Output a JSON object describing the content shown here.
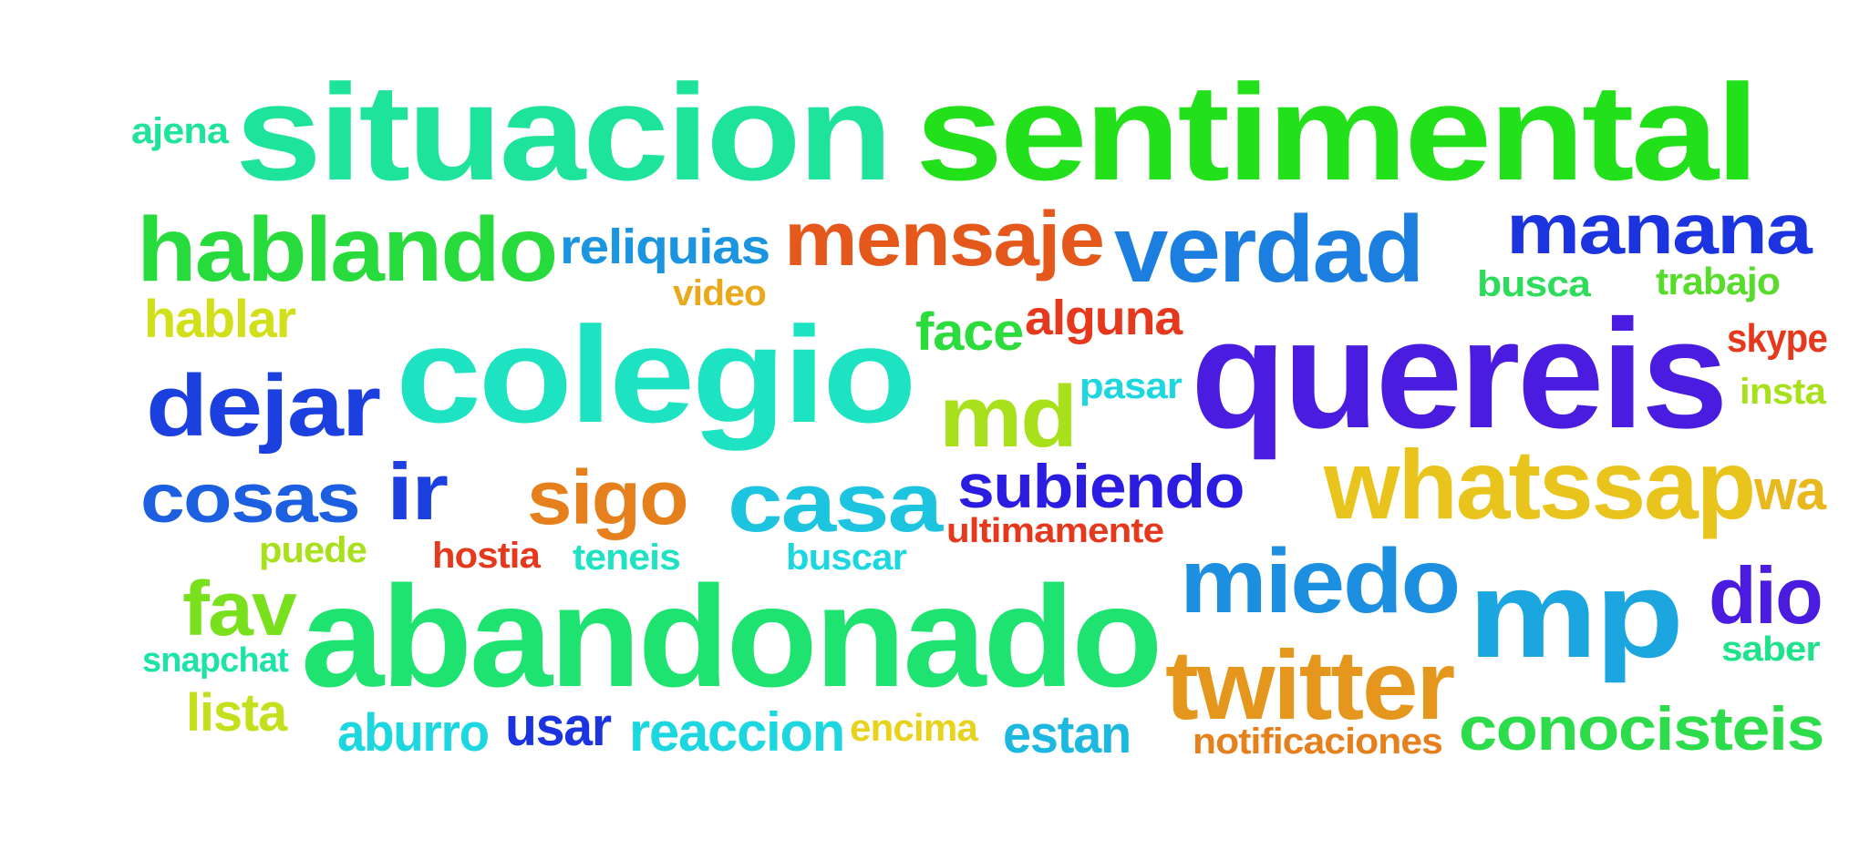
{
  "words": [
    {
      "text": "situacion",
      "color": "#1ee39a"
    },
    {
      "text": "sentimental",
      "color": "#22e01a"
    },
    {
      "text": "ajena",
      "color": "#1ee39a"
    },
    {
      "text": "hablando",
      "color": "#28db3c"
    },
    {
      "text": "reliquias",
      "color": "#1c95e0"
    },
    {
      "text": "mensaje",
      "color": "#e5581c"
    },
    {
      "text": "verdad",
      "color": "#1c7fe0"
    },
    {
      "text": "manana",
      "color": "#1c34e0"
    },
    {
      "text": "busca",
      "color": "#2cdc5a"
    },
    {
      "text": "trabajo",
      "color": "#58dc2c"
    },
    {
      "text": "video",
      "color": "#e8a91c"
    },
    {
      "text": "hablar",
      "color": "#d2e01c"
    },
    {
      "text": "face",
      "color": "#2cdc3c"
    },
    {
      "text": "alguna",
      "color": "#e5381c"
    },
    {
      "text": "colegio",
      "color": "#1ee3c2"
    },
    {
      "text": "quereis",
      "color": "#4a1ce0"
    },
    {
      "text": "skype",
      "color": "#e5381c"
    },
    {
      "text": "dejar",
      "color": "#1c3fe0"
    },
    {
      "text": "md",
      "color": "#a8e01c"
    },
    {
      "text": "pasar",
      "color": "#1cd6e0"
    },
    {
      "text": "insta",
      "color": "#a8e01c"
    },
    {
      "text": "cosas",
      "color": "#1c5fe0"
    },
    {
      "text": "ir",
      "color": "#1c3fe0"
    },
    {
      "text": "sigo",
      "color": "#e5801c"
    },
    {
      "text": "casa",
      "color": "#1cc4e0"
    },
    {
      "text": "subiendo",
      "color": "#2a1ce0"
    },
    {
      "text": "whatssap",
      "color": "#e8c41c"
    },
    {
      "text": "wa",
      "color": "#e8b81c"
    },
    {
      "text": "ultimamente",
      "color": "#e5381c"
    },
    {
      "text": "puede",
      "color": "#a8e01c"
    },
    {
      "text": "hostia",
      "color": "#e5381c"
    },
    {
      "text": "teneis",
      "color": "#1ee3c2"
    },
    {
      "text": "buscar",
      "color": "#1cd6e0"
    },
    {
      "text": "miedo",
      "color": "#1c8fe0"
    },
    {
      "text": "mp",
      "color": "#1ca6e0"
    },
    {
      "text": "dio",
      "color": "#4a1ce0"
    },
    {
      "text": "fav",
      "color": "#78e01c"
    },
    {
      "text": "abandonado",
      "color": "#1ee370"
    },
    {
      "text": "twitter",
      "color": "#e5961c"
    },
    {
      "text": "snapchat",
      "color": "#1ee3a8"
    },
    {
      "text": "saber",
      "color": "#1ee38a"
    },
    {
      "text": "lista",
      "color": "#c4e01c"
    },
    {
      "text": "aburro",
      "color": "#1cd6e0"
    },
    {
      "text": "usar",
      "color": "#1c34e0"
    },
    {
      "text": "reaccion",
      "color": "#1cd6e0"
    },
    {
      "text": "encima",
      "color": "#e8d21c"
    },
    {
      "text": "estan",
      "color": "#1cb8e0"
    },
    {
      "text": "notificaciones",
      "color": "#e5801c"
    },
    {
      "text": "conocisteis",
      "color": "#2cdc4a"
    }
  ]
}
